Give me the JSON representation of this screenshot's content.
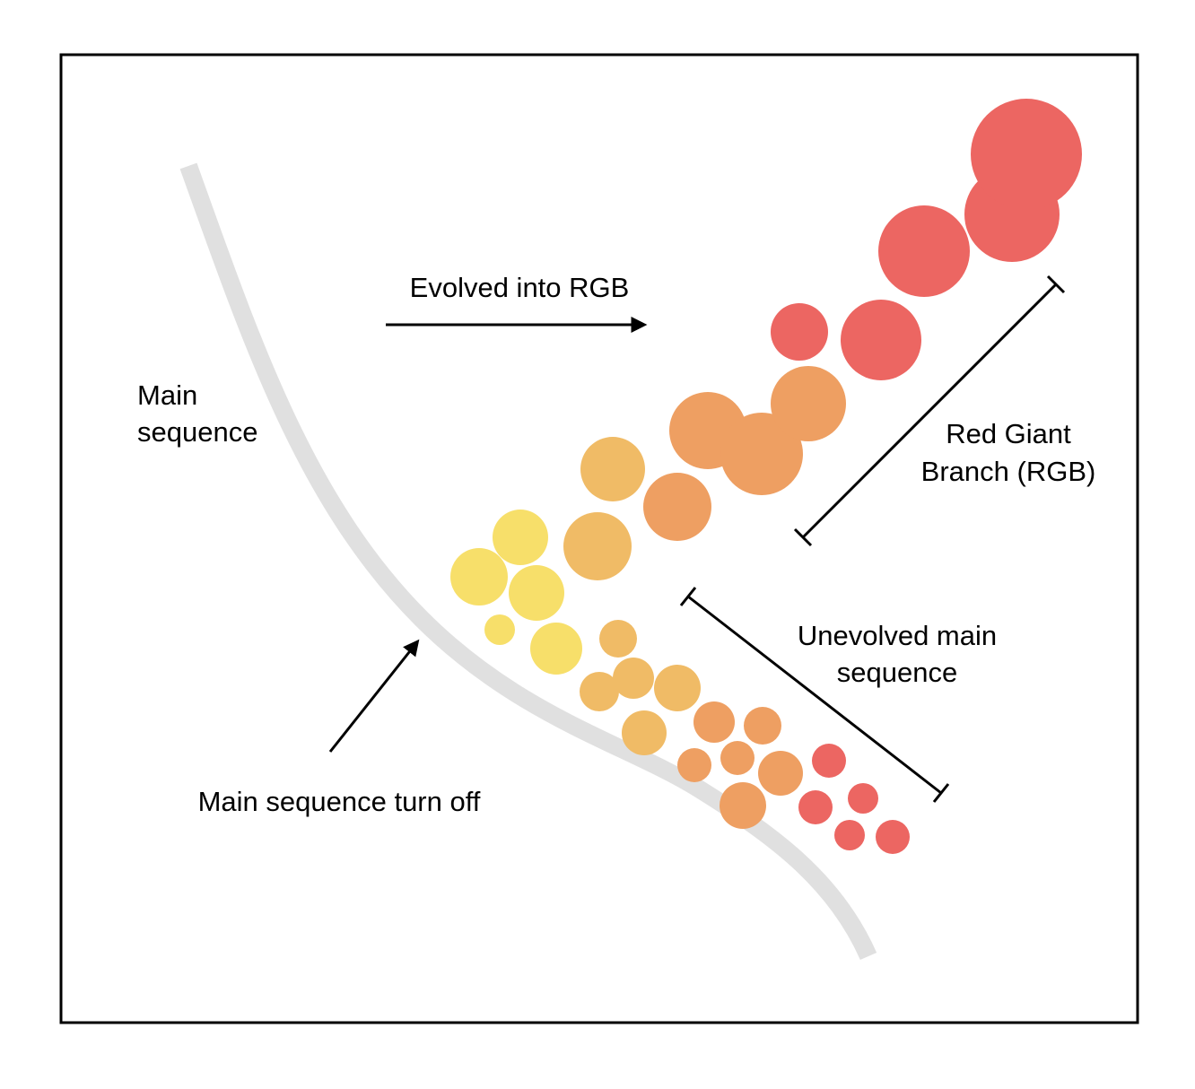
{
  "labels": {
    "evolved": "Evolved into RGB",
    "main_sequence_line1": "Main",
    "main_sequence_line2": "sequence",
    "rgb_line1": "Red Giant",
    "rgb_line2": "Branch (RGB)",
    "unevolved_line1": "Unevolved main",
    "unevolved_line2": "sequence",
    "turnoff": "Main sequence turn off"
  },
  "colors": {
    "frame": "#000000",
    "main_sequence_track": "#e0e0e0",
    "yellow": "#f7df6a",
    "light_orange": "#f0bb66",
    "orange": "#ee9f62",
    "red": "#ec6662"
  }
}
